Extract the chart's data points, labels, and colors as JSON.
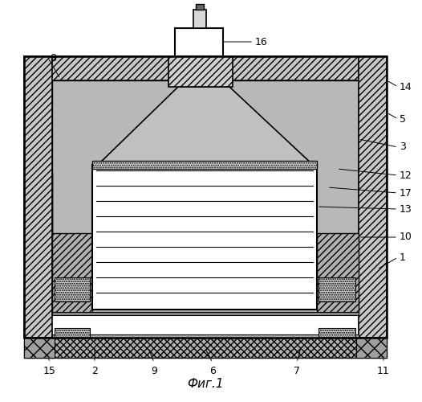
{
  "bg_color": "#ffffff",
  "title": "Фиг.1",
  "right_labels": [
    [
      "14",
      498,
      108,
      482,
      100
    ],
    [
      "5",
      498,
      148,
      482,
      140
    ],
    [
      "3",
      498,
      183,
      447,
      173
    ],
    [
      "12",
      498,
      218,
      420,
      210
    ],
    [
      "17",
      498,
      240,
      408,
      233
    ],
    [
      "13",
      498,
      260,
      395,
      257
    ],
    [
      "10",
      498,
      295,
      447,
      295
    ],
    [
      "1",
      498,
      320,
      470,
      335
    ]
  ],
  "bottom_labels": [
    [
      "15",
      62,
      455,
      55,
      425
    ],
    [
      "2",
      118,
      455,
      118,
      432
    ],
    [
      "9",
      192,
      455,
      185,
      432
    ],
    [
      "6",
      265,
      455,
      255,
      432
    ],
    [
      "7",
      370,
      455,
      375,
      432
    ],
    [
      "11",
      478,
      455,
      478,
      432
    ]
  ],
  "top_labels": [
    [
      "8",
      62,
      72,
      75,
      98
    ],
    [
      "16",
      318,
      52,
      258,
      52
    ]
  ]
}
